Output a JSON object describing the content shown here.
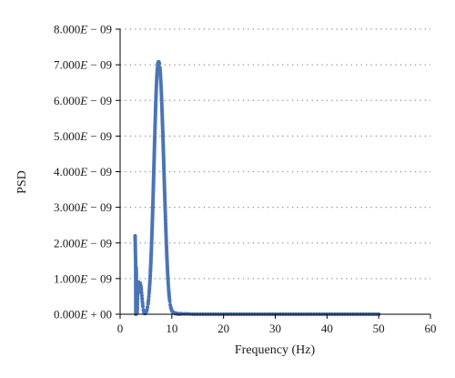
{
  "chart_data": {
    "type": "line",
    "title": "",
    "xlabel": "Frequency (Hz)",
    "ylabel": "PSD",
    "xlim": [
      0,
      60
    ],
    "ylim": [
      0,
      8e-09
    ],
    "x_ticks": [
      "0",
      "10",
      "20",
      "30",
      "40",
      "50",
      "60"
    ],
    "y_ticks": [
      {
        "mantissa": "0.000",
        "exp": "+ 00"
      },
      {
        "mantissa": "1.000",
        "exp": "− 09"
      },
      {
        "mantissa": "2.000",
        "exp": "− 09"
      },
      {
        "mantissa": "3.000",
        "exp": "− 09"
      },
      {
        "mantissa": "4.000",
        "exp": "− 09"
      },
      {
        "mantissa": "5.000",
        "exp": "− 09"
      },
      {
        "mantissa": "6.000",
        "exp": "− 09"
      },
      {
        "mantissa": "7.000",
        "exp": "− 09"
      },
      {
        "mantissa": "8.000",
        "exp": "− 09"
      }
    ],
    "exp_letter": "E",
    "grid": "horizontal dotted",
    "legend": "none",
    "marker_color": "#4a74b5",
    "series": [
      {
        "x": [
          2.9,
          3.0,
          3.05,
          3.1,
          3.2,
          3.3,
          3.4,
          3.5,
          3.6,
          3.7,
          3.8,
          3.9,
          4.0,
          4.1,
          4.2,
          4.3,
          4.4,
          4.5,
          4.6,
          4.7,
          4.8,
          4.9,
          5.0,
          5.1,
          5.2,
          5.3,
          5.4,
          5.5,
          5.6,
          5.7,
          5.8,
          5.9,
          6.0,
          6.1,
          6.2,
          6.3,
          6.4,
          6.5,
          6.6,
          6.7,
          6.8,
          6.9,
          7.0,
          7.1,
          7.2,
          7.3,
          7.4,
          7.5,
          7.6,
          7.7,
          7.8,
          7.9,
          8.0,
          8.1,
          8.2,
          8.3,
          8.4,
          8.5,
          8.6,
          8.7,
          8.8,
          8.9,
          9.0,
          9.1,
          9.2,
          9.3,
          9.4,
          9.5,
          9.6,
          9.7,
          9.8,
          9.9,
          10.0,
          10.1,
          10.2,
          10.3,
          10.4,
          10.5,
          10.6,
          10.7,
          10.8,
          10.9,
          11.0,
          11.1,
          11.2,
          11.3,
          11.4,
          11.5,
          11.6,
          11.8,
          12.0,
          12.5,
          13,
          14,
          15,
          16,
          17,
          18,
          19,
          20,
          21,
          22,
          23,
          24,
          25,
          26,
          27,
          28,
          29,
          30,
          31,
          32,
          33,
          34,
          35,
          36,
          37,
          38,
          39,
          40,
          41,
          42,
          43,
          44,
          45,
          46,
          47,
          48,
          49,
          50
        ],
        "y": [
          2.2e-09,
          1.4e-09,
          0,
          1.3e-09,
          4e-10,
          5e-11,
          8e-10,
          6e-10,
          9e-10,
          8.2e-10,
          8.8e-10,
          8.6e-10,
          8e-10,
          6.8e-10,
          5.2e-10,
          3.6e-10,
          2.2e-10,
          1.2e-10,
          6e-11,
          3e-11,
          2e-11,
          3e-11,
          5e-11,
          8e-11,
          1.3e-10,
          2e-10,
          2.9e-10,
          4.2e-10,
          5.8e-10,
          7.8e-10,
          1.02e-09,
          1.31e-09,
          1.65e-09,
          2.03e-09,
          2.46e-09,
          2.93e-09,
          3.43e-09,
          3.95e-09,
          4.48e-09,
          5e-09,
          5.5e-09,
          5.95e-09,
          6.35e-09,
          6.67e-09,
          6.9e-09,
          7.04e-09,
          7.08e-09,
          7.08e-09,
          7.03e-09,
          6.92e-09,
          6.72e-09,
          6.45e-09,
          6.12e-09,
          5.74e-09,
          5.32e-09,
          4.87e-09,
          4.4e-09,
          3.92e-09,
          3.45e-09,
          2.99e-09,
          2.55e-09,
          2.14e-09,
          1.76e-09,
          1.42e-09,
          1.12e-09,
          8.7e-10,
          6.6e-10,
          4.9e-10,
          3.6e-10,
          2.6e-10,
          1.9e-10,
          1.4e-10,
          1e-10,
          8e-11,
          6e-11,
          5e-11,
          4e-11,
          3e-11,
          3e-11,
          2e-11,
          2e-11,
          2e-11,
          2e-11,
          1e-11,
          1e-11,
          1e-11,
          1e-11,
          1e-11,
          1e-11,
          1e-11,
          1e-11,
          1e-11,
          1e-11,
          0,
          0,
          0,
          0,
          0,
          0,
          0,
          0,
          0,
          0,
          0,
          0,
          0,
          0,
          0,
          0,
          0,
          0,
          0,
          0,
          0,
          0,
          0,
          0,
          0,
          0,
          0,
          0,
          0,
          0,
          0,
          0,
          0,
          0,
          0,
          0,
          0
        ]
      }
    ]
  }
}
